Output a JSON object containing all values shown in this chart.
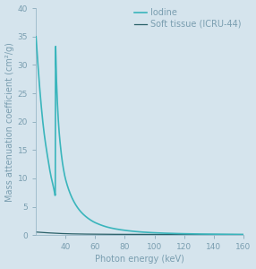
{
  "background_color": "#d5e4ed",
  "iodine_color": "#3ab5bc",
  "soft_tissue_color": "#2a6068",
  "xlim": [
    20,
    160
  ],
  "ylim": [
    0,
    40
  ],
  "xticks": [
    40,
    60,
    80,
    100,
    120,
    140,
    160
  ],
  "yticks": [
    0,
    5,
    10,
    15,
    20,
    25,
    30,
    35,
    40
  ],
  "xlabel": "Photon energy (keV)",
  "ylabel": "Mass attenuation coefficient (cm²/g)",
  "legend_labels": [
    "Iodine",
    "Soft tissue (ICRU-44)"
  ],
  "axis_color": "#9ab8c8",
  "tick_color": "#7a9eb0",
  "label_color": "#7a9eb0",
  "legend_fontsize": 7.0,
  "axis_fontsize": 7.0,
  "tick_fontsize": 6.5,
  "iodine_data_x": [
    20,
    25,
    28,
    30,
    32,
    32.9,
    33.0,
    33.2,
    33.5,
    34,
    35,
    36,
    38,
    40,
    45,
    50,
    55,
    60,
    70,
    80,
    90,
    100,
    110,
    120,
    130,
    140,
    150,
    160
  ],
  "iodine_data_y": [
    35.0,
    19.0,
    13.5,
    10.5,
    8.2,
    7.0,
    7.2,
    33.5,
    30.0,
    26.0,
    20.5,
    17.0,
    12.5,
    9.8,
    6.2,
    4.2,
    3.0,
    2.2,
    1.3,
    0.85,
    0.58,
    0.42,
    0.32,
    0.25,
    0.2,
    0.17,
    0.14,
    0.12
  ],
  "soft_data_x": [
    20,
    30,
    40,
    50,
    60,
    70,
    80,
    90,
    100,
    120,
    140,
    160
  ],
  "soft_data_y": [
    0.55,
    0.38,
    0.26,
    0.2,
    0.17,
    0.15,
    0.14,
    0.13,
    0.13,
    0.12,
    0.12,
    0.11
  ]
}
